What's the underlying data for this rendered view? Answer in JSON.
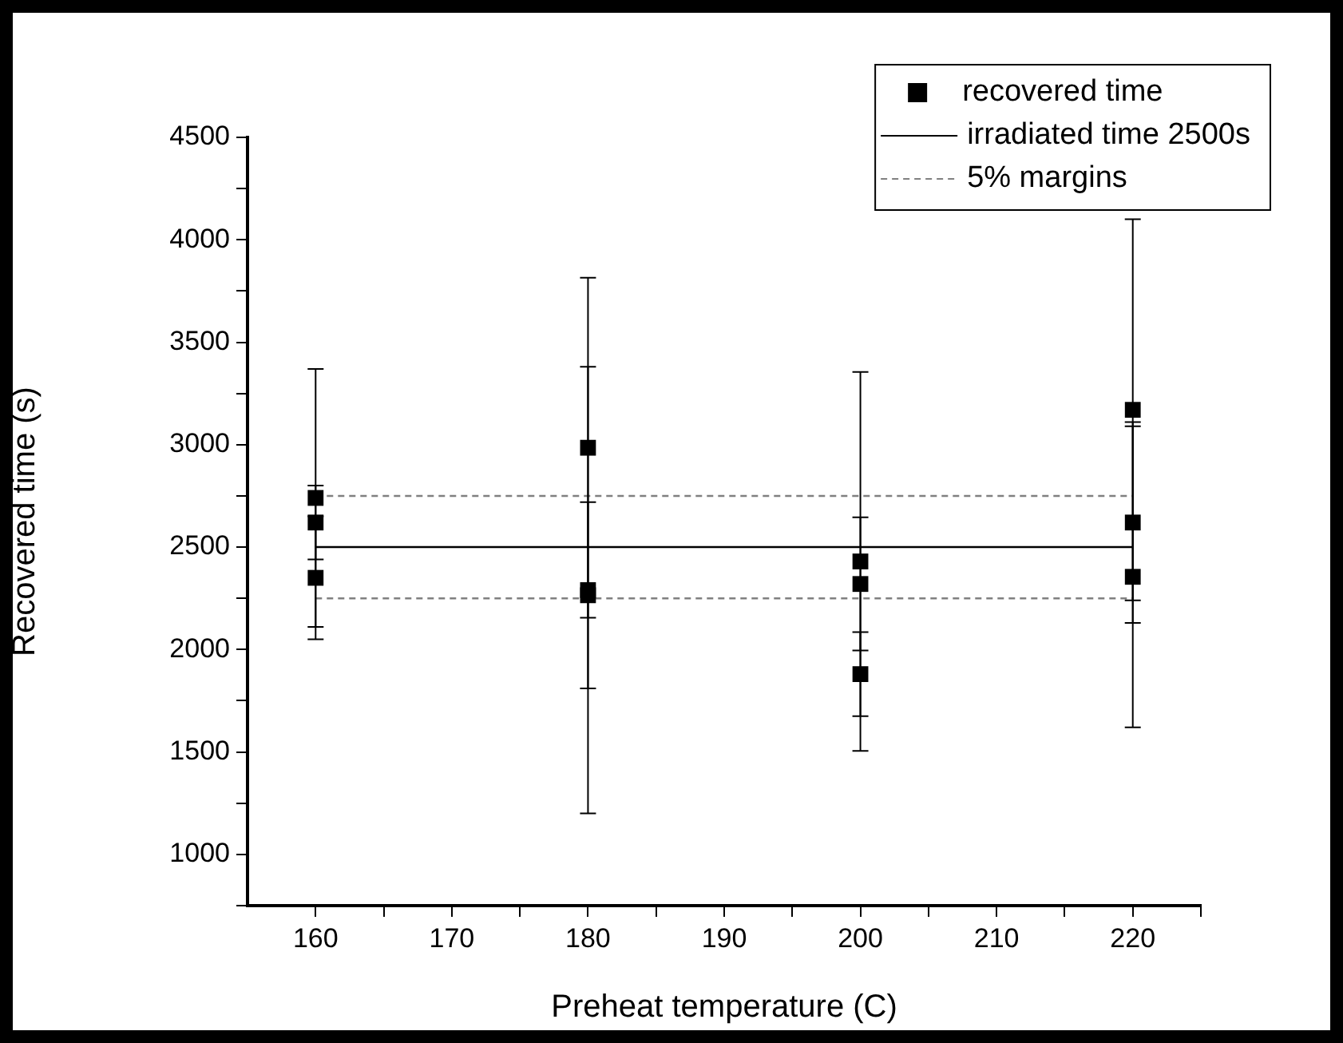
{
  "chart_data": {
    "type": "scatter",
    "xlabel": "Preheat temperature (C)",
    "ylabel": "Recovered time (s)",
    "xlim": [
      155,
      225
    ],
    "xticks": [
      160,
      {
        "value": 165,
        "label": null
      },
      170,
      {
        "value": 175,
        "label": null
      },
      180,
      {
        "value": 185,
        "label": null
      },
      190,
      {
        "value": 195,
        "label": null
      },
      200,
      {
        "value": 205,
        "label": null
      },
      210,
      {
        "value": 215,
        "label": null
      },
      220,
      {
        "value": 225,
        "label": null
      }
    ],
    "ylim": [
      750,
      4500
    ],
    "yticks": [
      {
        "value": 750,
        "label": null
      },
      1000,
      {
        "value": 1250,
        "label": null
      },
      1500,
      {
        "value": 1750,
        "label": null
      },
      2000,
      {
        "value": 2250,
        "label": null
      },
      2500,
      {
        "value": 2750,
        "label": null
      },
      3000,
      {
        "value": 3250,
        "label": null
      },
      3500,
      {
        "value": 3750,
        "label": null
      },
      4000,
      {
        "value": 4250,
        "label": null
      },
      4500
    ],
    "grid": false,
    "legend": "top right",
    "series": [
      {
        "name": "recovered time",
        "type": "scatter",
        "color": "#000000",
        "marker": "square",
        "x": [
          160,
          160,
          160,
          180,
          180,
          180,
          200,
          200,
          200,
          220,
          220,
          220
        ],
        "values": [
          2740,
          2620,
          2350,
          2985,
          2290,
          2265,
          2430,
          2320,
          1880,
          3170,
          2620,
          2355
        ],
        "errors": [
          630,
          180,
          300,
          830,
          1090,
          455,
          925,
          325,
          205,
          930,
          490,
          735
        ]
      },
      {
        "name": "irradiated time 2500s",
        "type": "line",
        "color": "#000000",
        "line_style": "solid",
        "marker": "none",
        "x": [
          160,
          220
        ],
        "values": [
          2500,
          2500
        ]
      },
      {
        "name": "5% margins",
        "type": "line",
        "color": "#808080",
        "line_style": "dashed",
        "marker": "none",
        "x": [
          160,
          220
        ],
        "values": [
          2750,
          2750
        ]
      },
      {
        "type": "line",
        "color": "#808080",
        "line_style": "dashed",
        "marker": "none",
        "x": [
          160,
          220
        ],
        "values": [
          2250,
          2250
        ]
      }
    ]
  }
}
